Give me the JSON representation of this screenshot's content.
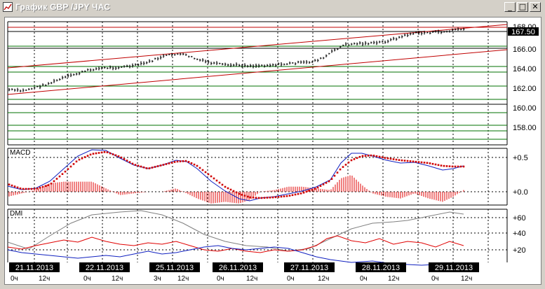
{
  "window": {
    "title": "График GBP /JPY  ЧАС",
    "minimize_icon": "minimize-icon",
    "maximize_icon": "maximize-icon",
    "close_icon": "close-icon"
  },
  "price_panel": {
    "current_price": "167.50",
    "price_labels": [
      "168.00",
      "166.00",
      "164.00",
      "162.00",
      "160.00",
      "158.00"
    ]
  },
  "macd_panel": {
    "label": "MACD",
    "levels": [
      "+0.5",
      "+0.0"
    ]
  },
  "dmi_panel": {
    "label": "DMI",
    "levels": [
      "+60",
      "+40",
      "+20"
    ]
  },
  "time_axis": {
    "dates": [
      "21.11.2013",
      "22.11.2013",
      "25.11.2013",
      "26.11.2013",
      "27.11.2013",
      "28.11.2013",
      "29.11.2013"
    ],
    "hours": [
      "0ч",
      "12ч",
      "0ч",
      "12ч",
      "3ч",
      "12ч",
      "0ч",
      "12ч",
      "0ч",
      "12ч",
      "0ч",
      "12ч",
      "0ч",
      "12ч"
    ]
  },
  "colors": {
    "price_bars": "#000000",
    "channel_lines": "#c00000",
    "support_lines": "#007000",
    "macd_line": "#1020c0",
    "signal_line": "#e00000",
    "dmi_adx": "#808080",
    "dmi_plus": "#e00000",
    "dmi_minus": "#1020c0"
  }
}
